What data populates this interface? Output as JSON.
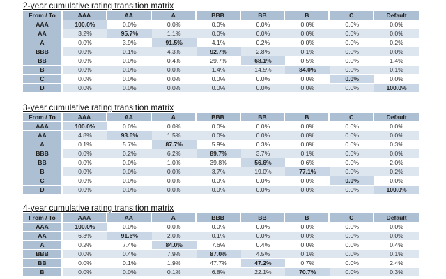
{
  "matrices": [
    {
      "title": "2-year cumulative rating transition matrix",
      "header": [
        "From / To",
        "AAA",
        "AA",
        "A",
        "BBB",
        "BB",
        "B",
        "C",
        "Default"
      ],
      "rows": [
        {
          "label": "AAA",
          "values": [
            "100.0%",
            "0.0%",
            "0.0%",
            "0.0%",
            "0.0%",
            "0.0%",
            "0.0%",
            "0.0%"
          ]
        },
        {
          "label": "AA",
          "values": [
            "3.2%",
            "95.7%",
            "1.1%",
            "0.0%",
            "0.0%",
            "0.0%",
            "0.0%",
            "0.0%"
          ]
        },
        {
          "label": "A",
          "values": [
            "0.0%",
            "3.9%",
            "91.5%",
            "4.1%",
            "0.2%",
            "0.0%",
            "0.0%",
            "0.2%"
          ]
        },
        {
          "label": "BBB",
          "values": [
            "0.0%",
            "0.1%",
            "4.3%",
            "92.7%",
            "2.8%",
            "0.1%",
            "0.0%",
            "0.0%"
          ]
        },
        {
          "label": "BB",
          "values": [
            "0.0%",
            "0.0%",
            "0.4%",
            "29.7%",
            "68.1%",
            "0.5%",
            "0.0%",
            "1.4%"
          ]
        },
        {
          "label": "B",
          "values": [
            "0.0%",
            "0.0%",
            "0.0%",
            "1.4%",
            "14.5%",
            "84.0%",
            "0.0%",
            "0.1%"
          ]
        },
        {
          "label": "C",
          "values": [
            "0.0%",
            "0.0%",
            "0.0%",
            "0.0%",
            "0.0%",
            "0.0%",
            "0.0%",
            "0.0%"
          ]
        },
        {
          "label": "D",
          "values": [
            "0.0%",
            "0.0%",
            "0.0%",
            "0.0%",
            "0.0%",
            "0.0%",
            "0.0%",
            "100.0%"
          ]
        }
      ]
    },
    {
      "title": "3-year cumulative rating transition matrix",
      "header": [
        "From / To",
        "AAA",
        "AA",
        "A",
        "BBB",
        "BB",
        "B",
        "C",
        "Default"
      ],
      "rows": [
        {
          "label": "AAA",
          "values": [
            "100.0%",
            "0.0%",
            "0.0%",
            "0.0%",
            "0.0%",
            "0.0%",
            "0.0%",
            "0.0%"
          ]
        },
        {
          "label": "AA",
          "values": [
            "4.8%",
            "93.6%",
            "1.5%",
            "0.0%",
            "0.0%",
            "0.0%",
            "0.0%",
            "0.0%"
          ]
        },
        {
          "label": "A",
          "values": [
            "0.1%",
            "5.7%",
            "87.7%",
            "5.9%",
            "0.3%",
            "0.0%",
            "0.0%",
            "0.3%"
          ]
        },
        {
          "label": "BBB",
          "values": [
            "0.0%",
            "0.2%",
            "6.2%",
            "89.7%",
            "3.7%",
            "0.1%",
            "0.0%",
            "0.0%"
          ]
        },
        {
          "label": "BB",
          "values": [
            "0.0%",
            "0.0%",
            "1.0%",
            "39.8%",
            "56.6%",
            "0.6%",
            "0.0%",
            "2.0%"
          ]
        },
        {
          "label": "B",
          "values": [
            "0.0%",
            "0.0%",
            "0.0%",
            "3.7%",
            "19.0%",
            "77.1%",
            "0.0%",
            "0.2%"
          ]
        },
        {
          "label": "C",
          "values": [
            "0.0%",
            "0.0%",
            "0.0%",
            "0.0%",
            "0.0%",
            "0.0%",
            "0.0%",
            "0.0%"
          ]
        },
        {
          "label": "D",
          "values": [
            "0.0%",
            "0.0%",
            "0.0%",
            "0.0%",
            "0.0%",
            "0.0%",
            "0.0%",
            "100.0%"
          ]
        }
      ]
    },
    {
      "title": "4-year cumulative rating transition matrix",
      "header": [
        "From / To",
        "AAA",
        "AA",
        "A",
        "BBB",
        "BB",
        "B",
        "C",
        "Default"
      ],
      "rows": [
        {
          "label": "AAA",
          "values": [
            "100.0%",
            "0.0%",
            "0.0%",
            "0.0%",
            "0.0%",
            "0.0%",
            "0.0%",
            "0.0%"
          ]
        },
        {
          "label": "AA",
          "values": [
            "6.3%",
            "91.6%",
            "2.0%",
            "0.1%",
            "0.0%",
            "0.0%",
            "0.0%",
            "0.0%"
          ]
        },
        {
          "label": "A",
          "values": [
            "0.2%",
            "7.4%",
            "84.0%",
            "7.6%",
            "0.4%",
            "0.0%",
            "0.0%",
            "0.4%"
          ]
        },
        {
          "label": "BBB",
          "values": [
            "0.0%",
            "0.4%",
            "7.9%",
            "87.0%",
            "4.5%",
            "0.1%",
            "0.0%",
            "0.1%"
          ]
        },
        {
          "label": "BB",
          "values": [
            "0.0%",
            "0.1%",
            "1.9%",
            "47.7%",
            "47.2%",
            "0.7%",
            "0.0%",
            "2.4%"
          ]
        },
        {
          "label": "B",
          "values": [
            "0.0%",
            "0.0%",
            "0.1%",
            "6.8%",
            "22.1%",
            "70.7%",
            "0.0%",
            "0.3%"
          ]
        }
      ]
    }
  ],
  "colors": {
    "header_bg": "#adbfd3",
    "diagonal_bg": "#c8d6e6",
    "alt_row_bg": "#dde5ef",
    "text": "#333333"
  }
}
